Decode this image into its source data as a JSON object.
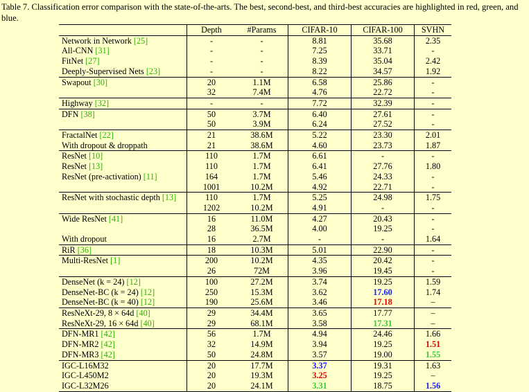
{
  "caption": "Table 7. Classification error comparison with the state-of-the-arts. The best, second-best, and third-best accuracies are highlighted in red, green, and blue.",
  "headers": [
    "",
    "Depth",
    "#Params",
    "CIFAR-10",
    "CIFAR-100",
    "SVHN"
  ],
  "groups": [
    [
      {
        "name": "Network in Network",
        "ref": "[25]",
        "depth": "-",
        "params": "-",
        "c10": "8.81",
        "c100": "35.68",
        "svhn": "2.35"
      },
      {
        "name": "All-CNN",
        "ref": "[31]",
        "depth": "-",
        "params": "-",
        "c10": "7.25",
        "c100": "33.71",
        "svhn": "-"
      },
      {
        "name": "FitNet",
        "ref": "[27]",
        "depth": "-",
        "params": "-",
        "c10": "8.39",
        "c100": "35.04",
        "svhn": "2.42"
      },
      {
        "name": "Deeply-Supervised Nets",
        "ref": "[23]",
        "depth": "-",
        "params": "-",
        "c10": "8.22",
        "c100": "34.57",
        "svhn": "1.92"
      }
    ],
    [
      {
        "name": "Swapout",
        "ref": "[30]",
        "depth": "20",
        "params": "1.1M",
        "c10": "6.58",
        "c100": "25.86",
        "svhn": "-"
      },
      {
        "name": "",
        "ref": "",
        "depth": "32",
        "params": "7.4M",
        "c10": "4.76",
        "c100": "22.72",
        "svhn": "-"
      }
    ],
    [
      {
        "name": "Highway",
        "ref": "[32]",
        "depth": "-",
        "params": "-",
        "c10": "7.72",
        "c100": "32.39",
        "svhn": "-"
      }
    ],
    [
      {
        "name": "DFN",
        "ref": "[38]",
        "depth": "50",
        "params": "3.7M",
        "c10": "6.40",
        "c100": "27.61",
        "svhn": "-"
      },
      {
        "name": "",
        "ref": "",
        "depth": "50",
        "params": "3.9M",
        "c10": "6.24",
        "c100": "27.52",
        "svhn": "-"
      }
    ],
    [
      {
        "name": "FractalNet",
        "ref": "[22]",
        "depth": "21",
        "params": "38.6M",
        "c10": "5.22",
        "c100": "23.30",
        "svhn": "2.01"
      },
      {
        "name": "With dropout & droppath",
        "ref": "",
        "depth": "21",
        "params": "38.6M",
        "c10": "4.60",
        "c100": "23.73",
        "svhn": "1.87"
      }
    ],
    [
      {
        "name": "ResNet",
        "ref": "[10]",
        "depth": "110",
        "params": "1.7M",
        "c10": "6.61",
        "c100": "-",
        "svhn": "-"
      },
      {
        "name": "ResNet",
        "ref": "[13]",
        "depth": "110",
        "params": "1.7M",
        "c10": "6.41",
        "c100": "27.76",
        "svhn": "1.80"
      },
      {
        "name": "ResNet (pre-activation)",
        "ref": "[11]",
        "depth": "164",
        "params": "1.7M",
        "c10": "5.46",
        "c100": "24.33",
        "svhn": "-"
      },
      {
        "name": "",
        "ref": "",
        "depth": "1001",
        "params": "10.2M",
        "c10": "4.92",
        "c100": "22.71",
        "svhn": "-"
      }
    ],
    [
      {
        "name": "ResNet with stochastic depth",
        "ref": "[13]",
        "depth": "110",
        "params": "1.7M",
        "c10": "5.25",
        "c100": "24.98",
        "svhn": "1.75"
      },
      {
        "name": "",
        "ref": "",
        "depth": "1202",
        "params": "10.2M",
        "c10": "4.91",
        "c100": "-",
        "svhn": "-"
      }
    ],
    [
      {
        "name": "Wide ResNet",
        "ref": "[41]",
        "depth": "16",
        "params": "11.0M",
        "c10": "4.27",
        "c100": "20.43",
        "svhn": "-"
      },
      {
        "name": "",
        "ref": "",
        "depth": "28",
        "params": "36.5M",
        "c10": "4.00",
        "c100": "19.25",
        "svhn": "-"
      },
      {
        "name": "With dropout",
        "ref": "",
        "depth": "16",
        "params": "2.7M",
        "c10": "-",
        "c100": "-",
        "svhn": "1.64"
      }
    ],
    [
      {
        "name": "RiR",
        "ref": "[36]",
        "depth": "18",
        "params": "10.3M",
        "c10": "5.01",
        "c100": "22.90",
        "svhn": "-"
      }
    ],
    [
      {
        "name": "Multi-ResNet",
        "ref": "[1]",
        "depth": "200",
        "params": "10.2M",
        "c10": "4.35",
        "c100": "20.42",
        "svhn": "-"
      },
      {
        "name": "",
        "ref": "",
        "depth": "26",
        "params": "72M",
        "c10": "3.96",
        "c100": "19.45",
        "svhn": "-"
      }
    ],
    [
      {
        "name": "DenseNet (k = 24)",
        "ref": "[12]",
        "depth": "100",
        "params": "27.2M",
        "c10": "3.74",
        "c100": "19.25",
        "svhn": "1.59"
      },
      {
        "name": "DenseNet-BC (k = 24)",
        "ref": "[12]",
        "depth": "250",
        "params": "15.3M",
        "c10": "3.62",
        "c100": "17.60",
        "c100_hl": "blue",
        "svhn": "1.74"
      },
      {
        "name": "DenseNet-BC (k = 40)",
        "ref": "[12]",
        "depth": "190",
        "params": "25.6M",
        "c10": "3.46",
        "c100": "17.18",
        "c100_hl": "red",
        "svhn": "–"
      }
    ],
    [
      {
        "name": "ResNeXt-29, 8 × 64d",
        "ref": "[40]",
        "depth": "29",
        "params": "34.4M",
        "c10": "3.65",
        "c100": "17.77",
        "svhn": "–"
      },
      {
        "name": "ResNeXt-29, 16 × 64d",
        "ref": "[40]",
        "depth": "29",
        "params": "68.1M",
        "c10": "3.58",
        "c100": "17.31",
        "c100_hl": "green",
        "svhn": "–"
      }
    ],
    [
      {
        "name": "DFN-MR1",
        "ref": "[42]",
        "depth": "56",
        "params": "1.7M",
        "c10": "4.94",
        "c100": "24.46",
        "svhn": "1.66"
      },
      {
        "name": "DFN-MR2",
        "ref": "[42]",
        "depth": "32",
        "params": "14.9M",
        "c10": "3.94",
        "c100": "19.25",
        "svhn": "1.51",
        "svhn_hl": "red"
      },
      {
        "name": "DFN-MR3",
        "ref": "[42]",
        "depth": "50",
        "params": "24.8M",
        "c10": "3.57",
        "c100": "19.00",
        "svhn": "1.55",
        "svhn_hl": "green"
      }
    ],
    [
      {
        "name": "IGC-L16M32",
        "ref": "",
        "depth": "20",
        "params": "17.7M",
        "c10": "3.37",
        "c10_hl": "blue",
        "c100": "19.31",
        "svhn": "1.63"
      },
      {
        "name": "IGC-L450M2",
        "ref": "",
        "depth": "20",
        "params": "19.3M",
        "c10": "3.25",
        "c10_hl": "red",
        "c100": "19.25",
        "svhn": "–"
      },
      {
        "name": "IGC-L32M26",
        "ref": "",
        "depth": "20",
        "params": "24.1M",
        "c10": "3.31",
        "c10_hl": "green",
        "c100": "18.75",
        "svhn": "1.56",
        "svhn_hl": "blue"
      }
    ]
  ]
}
